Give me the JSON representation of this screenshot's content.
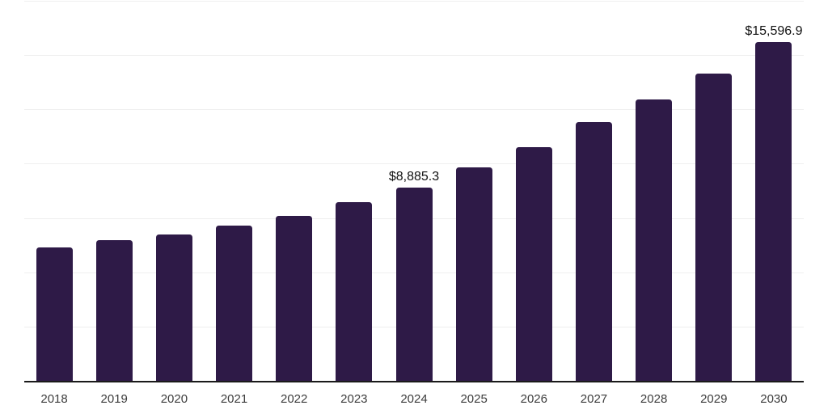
{
  "chart_data": {
    "type": "bar",
    "title": "",
    "xlabel": "",
    "ylabel": "",
    "categories": [
      "2018",
      "2019",
      "2020",
      "2021",
      "2022",
      "2023",
      "2024",
      "2025",
      "2026",
      "2027",
      "2028",
      "2029",
      "2030"
    ],
    "values": [
      6150,
      6470,
      6750,
      7150,
      7590,
      8230,
      8885.3,
      9820,
      10750,
      11910,
      12940,
      14160,
      15596.9
    ],
    "data_labels": {
      "2024": "$8,885.3",
      "2030": "$15,596.9"
    },
    "ylim": [
      0,
      17500
    ],
    "grid_step": 2500,
    "grid": true,
    "legend": false,
    "bar_color": "#2e1a47",
    "axis_color": "#1a1a1a",
    "gridline_color": "#efefef",
    "value_label_color": "#111111",
    "tick_label_color": "#3c3c3c",
    "background_color": "#ffffff"
  }
}
